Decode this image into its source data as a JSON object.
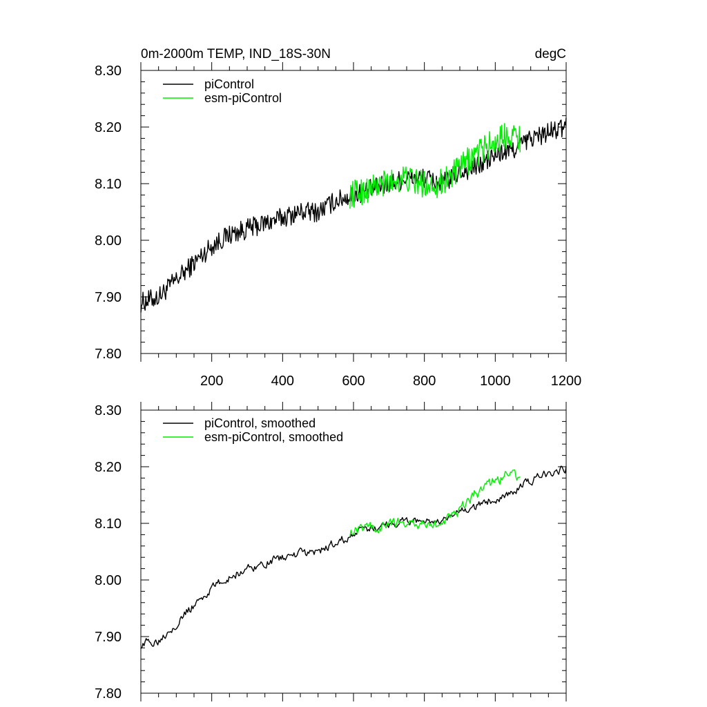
{
  "chart_data": [
    {
      "type": "line",
      "title_left": "0m-2000m TEMP, IND_18S-30N",
      "title_right": "degC",
      "xlabel": "",
      "ylabel": "",
      "xlim": [
        0,
        1200
      ],
      "ylim": [
        7.8,
        8.3
      ],
      "xticks": [
        200,
        400,
        600,
        800,
        1000,
        1200
      ],
      "xtick_labels": [
        "200",
        "400",
        "600",
        "800",
        "1000",
        "1200"
      ],
      "yticks": [
        7.8,
        7.9,
        8.0,
        8.1,
        8.2,
        8.3
      ],
      "ytick_labels": [
        "7.80",
        "7.90",
        "8.00",
        "8.10",
        "8.20",
        "8.30"
      ],
      "legend_position": "top-left",
      "series": [
        {
          "name": "piControl",
          "color": "#000000",
          "x": [
            0,
            50,
            100,
            150,
            200,
            250,
            300,
            350,
            400,
            450,
            500,
            550,
            600,
            650,
            700,
            750,
            800,
            850,
            900,
            950,
            1000,
            1050,
            1100,
            1150,
            1200
          ],
          "values": [
            7.89,
            7.9,
            7.93,
            7.96,
            7.99,
            8.01,
            8.02,
            8.03,
            8.04,
            8.05,
            8.05,
            8.07,
            8.08,
            8.09,
            8.1,
            8.11,
            8.11,
            8.1,
            8.12,
            8.13,
            8.15,
            8.16,
            8.18,
            8.19,
            8.2
          ]
        },
        {
          "name": "esm-piControl",
          "color": "#00ee00",
          "x": [
            590,
            640,
            690,
            740,
            790,
            840,
            890,
            940,
            990,
            1040,
            1070
          ],
          "values": [
            8.08,
            8.09,
            8.1,
            8.11,
            8.1,
            8.1,
            8.12,
            8.15,
            8.17,
            8.19,
            8.18
          ]
        }
      ]
    },
    {
      "type": "line",
      "xlim": [
        0,
        1200
      ],
      "ylim": [
        7.8,
        8.3
      ],
      "yticks": [
        7.8,
        7.9,
        8.0,
        8.1,
        8.2,
        8.3
      ],
      "ytick_labels": [
        "7.80",
        "7.90",
        "8.00",
        "8.10",
        "8.20",
        "8.30"
      ],
      "legend_position": "top-left",
      "series": [
        {
          "name": "piControl, smoothed",
          "color": "#000000",
          "x": [
            0,
            50,
            100,
            150,
            200,
            250,
            300,
            350,
            400,
            450,
            500,
            550,
            600,
            650,
            700,
            750,
            800,
            850,
            900,
            950,
            1000,
            1050,
            1100,
            1150,
            1200
          ],
          "values": [
            7.885,
            7.895,
            7.925,
            7.955,
            7.985,
            8.005,
            8.02,
            8.03,
            8.04,
            8.045,
            8.05,
            8.065,
            8.08,
            8.09,
            8.1,
            8.105,
            8.105,
            8.1,
            8.12,
            8.13,
            8.145,
            8.155,
            8.175,
            8.19,
            8.2
          ]
        },
        {
          "name": "esm-piControl, smoothed",
          "color": "#00ee00",
          "x": [
            590,
            640,
            690,
            740,
            790,
            840,
            890,
            940,
            990,
            1040,
            1070
          ],
          "values": [
            8.085,
            8.095,
            8.095,
            8.105,
            8.1,
            8.095,
            8.115,
            8.15,
            8.17,
            8.19,
            8.18
          ]
        }
      ]
    }
  ]
}
